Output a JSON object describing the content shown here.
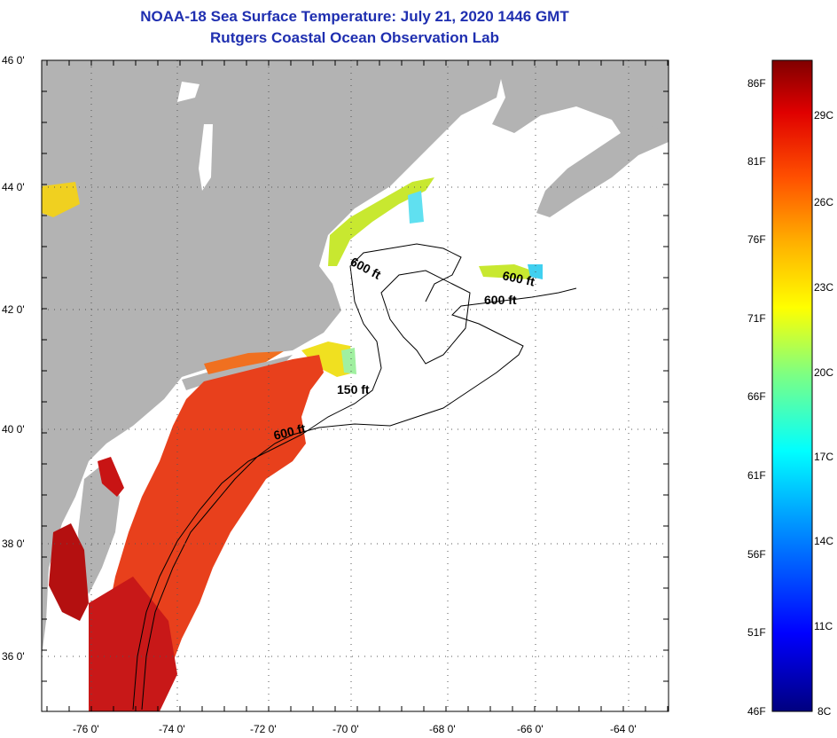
{
  "title": {
    "line1": "NOAA-18 Sea Surface Temperature:  July 21, 2020 1446 GMT",
    "line2": "Rutgers Coastal Ocean Observation Lab"
  },
  "map": {
    "lat_labels": [
      "46 0'",
      "44 0'",
      "42 0'",
      "40 0'",
      "38 0'",
      "36 0'"
    ],
    "lon_labels": [
      "-76 0'",
      "-74 0'",
      "-72 0'",
      "-70 0'",
      "-68 0'",
      "-66 0'",
      "-64 0'"
    ],
    "contour_labels": [
      "600 ft",
      "600 ft",
      "600 ft",
      "150 ft",
      "600 ft"
    ],
    "colors": {
      "land": "#b3b3b3",
      "ocean_nodata": "#ffffff",
      "warm": "#e8321c",
      "hot": "#c81414",
      "cool": "#f0d020",
      "cold": "#40d0f0"
    }
  },
  "colorbar": {
    "fahrenheit_labels": [
      "86F",
      "81F",
      "76F",
      "71F",
      "66F",
      "61F",
      "56F",
      "51F",
      "46F"
    ],
    "celsius_labels": [
      "29C",
      "26C",
      "23C",
      "20C",
      "17C",
      "14C",
      "11C",
      "8C"
    ],
    "range_c": [
      8,
      30
    ],
    "range_f": [
      46,
      86
    ]
  }
}
